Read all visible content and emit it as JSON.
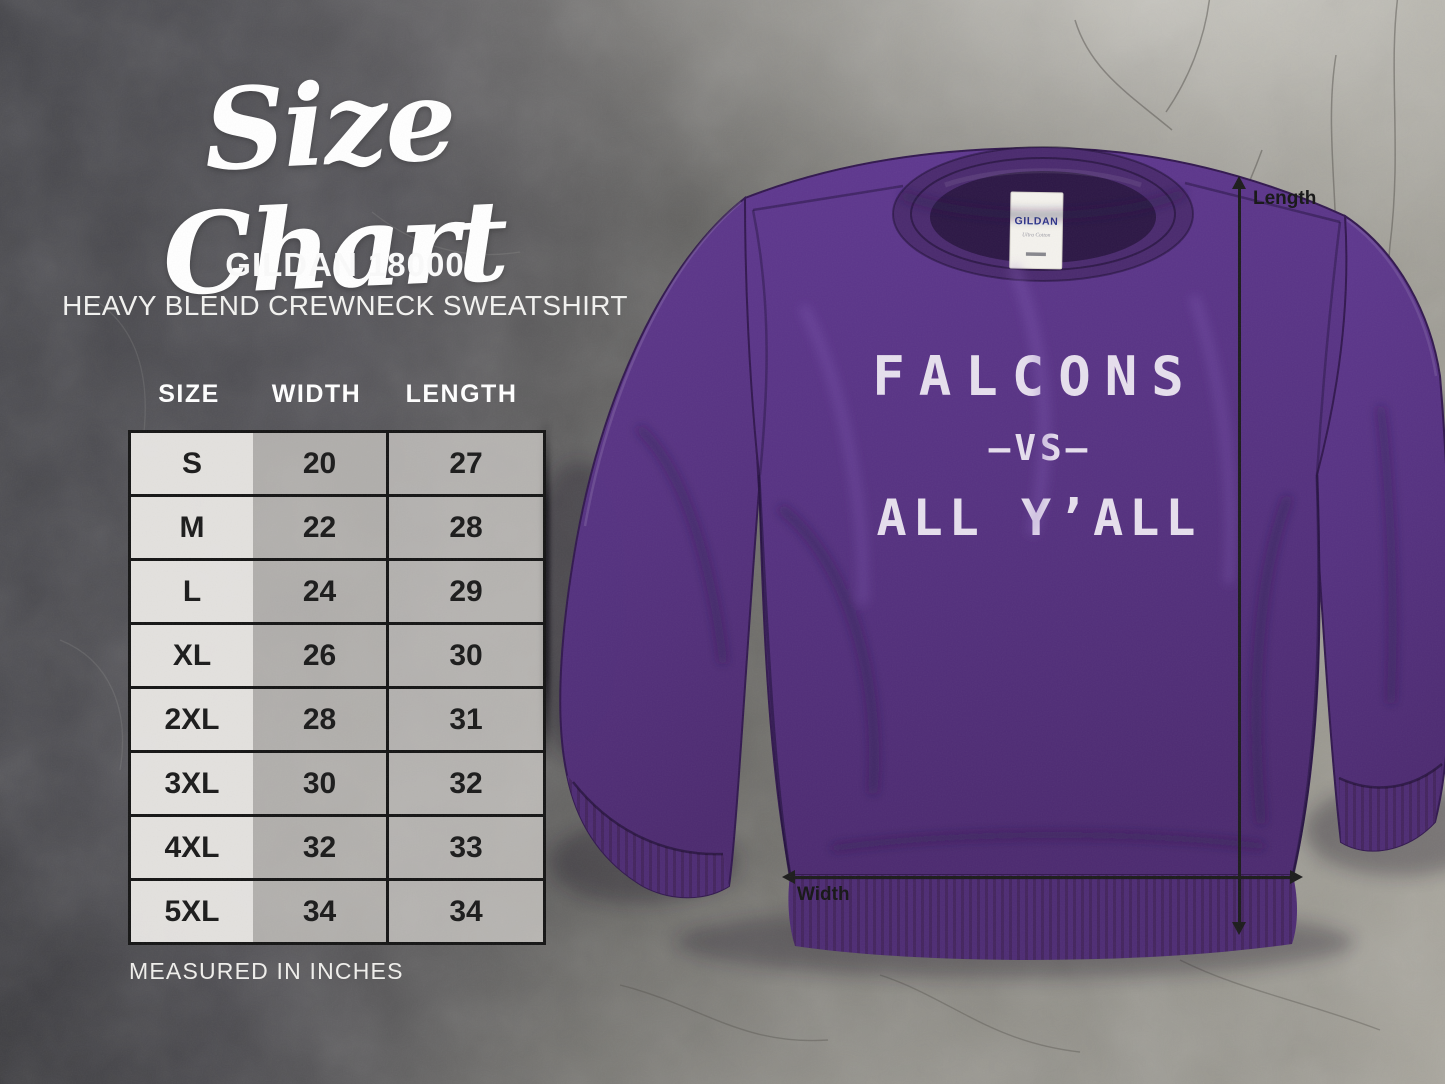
{
  "header": {
    "title": "Size Chart",
    "product": "GILDAN 18000",
    "subtitle": "HEAVY BLEND CREWNECK SWEATSHIRT"
  },
  "chart_data": {
    "type": "table",
    "title": "Size Chart",
    "units": "inches",
    "columns": [
      "SIZE",
      "WIDTH",
      "LENGTH"
    ],
    "rows": [
      [
        "S",
        "20",
        "27"
      ],
      [
        "M",
        "22",
        "28"
      ],
      [
        "L",
        "24",
        "29"
      ],
      [
        "XL",
        "26",
        "30"
      ],
      [
        "2XL",
        "28",
        "31"
      ],
      [
        "3XL",
        "30",
        "32"
      ],
      [
        "4XL",
        "32",
        "33"
      ],
      [
        "5XL",
        "34",
        "34"
      ]
    ],
    "footnote": "MEASURED IN INCHES"
  },
  "garment": {
    "print_line1": "FALCONS",
    "print_line2": "—VS—",
    "print_line3": "ALL Y’ALL",
    "tag_brand": "GILDAN",
    "tag_sub": "Ultra Cotton",
    "body_color": "#5a3484",
    "print_color": "#ece7f2"
  },
  "dimension_labels": {
    "length": "Length",
    "width": "Width"
  }
}
